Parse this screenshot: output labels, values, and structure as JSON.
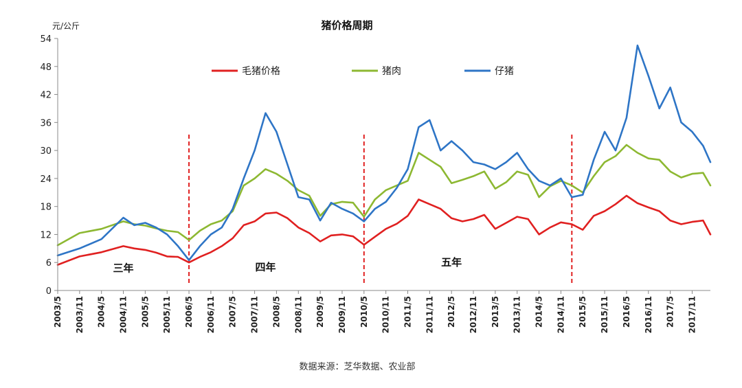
{
  "chart_data": {
    "type": "line",
    "title": "猪价格周期",
    "ylabel": "元/公斤",
    "ylim": [
      0,
      54
    ],
    "yticks": [
      0,
      6,
      12,
      18,
      24,
      30,
      36,
      42,
      48,
      54
    ],
    "x_start": "2003/5",
    "x_end": "2018/4",
    "xtick_labels": [
      "2003/5",
      "2003/11",
      "2004/5",
      "2004/11",
      "2005/5",
      "2005/11",
      "2006/5",
      "2006/11",
      "2007/5",
      "2007/11",
      "2008/5",
      "2008/11",
      "2009/5",
      "2009/11",
      "2010/5",
      "2010/11",
      "2011/5",
      "2011/11",
      "2012/5",
      "2012/11",
      "2013/5",
      "2013/11",
      "2014/5",
      "2014/11",
      "2015/5",
      "2015/11",
      "2016/5",
      "2016/11",
      "2017/5",
      "2017/11"
    ],
    "grid": false,
    "legend_position": "top",
    "series": [
      {
        "name": "毛猪价格",
        "color": "#e02020",
        "points": [
          [
            "2003/5",
            5.5
          ],
          [
            "2003/11",
            7.3
          ],
          [
            "2004/5",
            8.2
          ],
          [
            "2004/11",
            9.5
          ],
          [
            "2005/2",
            9.0
          ],
          [
            "2005/5",
            8.7
          ],
          [
            "2005/8",
            8.1
          ],
          [
            "2005/11",
            7.3
          ],
          [
            "2006/2",
            7.2
          ],
          [
            "2006/5",
            6.0
          ],
          [
            "2006/8",
            7.2
          ],
          [
            "2006/11",
            8.2
          ],
          [
            "2007/2",
            9.5
          ],
          [
            "2007/5",
            11.2
          ],
          [
            "2007/8",
            14.0
          ],
          [
            "2007/11",
            14.8
          ],
          [
            "2008/2",
            16.5
          ],
          [
            "2008/5",
            16.7
          ],
          [
            "2008/8",
            15.5
          ],
          [
            "2008/11",
            13.5
          ],
          [
            "2009/2",
            12.3
          ],
          [
            "2009/5",
            10.5
          ],
          [
            "2009/8",
            11.8
          ],
          [
            "2009/11",
            12.0
          ],
          [
            "2010/2",
            11.6
          ],
          [
            "2010/5",
            9.8
          ],
          [
            "2010/8",
            11.5
          ],
          [
            "2010/11",
            13.2
          ],
          [
            "2011/2",
            14.3
          ],
          [
            "2011/5",
            16.0
          ],
          [
            "2011/8",
            19.5
          ],
          [
            "2011/11",
            18.5
          ],
          [
            "2012/2",
            17.5
          ],
          [
            "2012/5",
            15.5
          ],
          [
            "2012/8",
            14.8
          ],
          [
            "2012/11",
            15.3
          ],
          [
            "2013/2",
            16.2
          ],
          [
            "2013/5",
            13.2
          ],
          [
            "2013/8",
            14.5
          ],
          [
            "2013/11",
            15.8
          ],
          [
            "2014/2",
            15.3
          ],
          [
            "2014/5",
            12.0
          ],
          [
            "2014/8",
            13.5
          ],
          [
            "2014/11",
            14.6
          ],
          [
            "2015/2",
            14.2
          ],
          [
            "2015/5",
            13.0
          ],
          [
            "2015/8",
            16.0
          ],
          [
            "2015/11",
            17.0
          ],
          [
            "2016/2",
            18.5
          ],
          [
            "2016/5",
            20.3
          ],
          [
            "2016/8",
            18.7
          ],
          [
            "2016/11",
            17.8
          ],
          [
            "2017/2",
            17.0
          ],
          [
            "2017/5",
            15.0
          ],
          [
            "2017/8",
            14.2
          ],
          [
            "2017/11",
            14.7
          ],
          [
            "2018/2",
            15.0
          ],
          [
            "2018/4",
            12.0
          ]
        ]
      },
      {
        "name": "猪肉",
        "color": "#8db832",
        "points": [
          [
            "2003/5",
            9.7
          ],
          [
            "2003/11",
            12.3
          ],
          [
            "2004/5",
            13.2
          ],
          [
            "2004/11",
            14.8
          ],
          [
            "2005/2",
            14.2
          ],
          [
            "2005/5",
            13.9
          ],
          [
            "2005/8",
            13.3
          ],
          [
            "2005/11",
            12.8
          ],
          [
            "2006/2",
            12.5
          ],
          [
            "2006/5",
            10.8
          ],
          [
            "2006/8",
            12.8
          ],
          [
            "2006/11",
            14.2
          ],
          [
            "2007/2",
            15.0
          ],
          [
            "2007/5",
            17.0
          ],
          [
            "2007/8",
            22.5
          ],
          [
            "2007/11",
            24.0
          ],
          [
            "2008/2",
            26.0
          ],
          [
            "2008/5",
            25.0
          ],
          [
            "2008/8",
            23.5
          ],
          [
            "2008/11",
            21.5
          ],
          [
            "2009/2",
            20.3
          ],
          [
            "2009/5",
            16.0
          ],
          [
            "2009/8",
            18.5
          ],
          [
            "2009/11",
            19.0
          ],
          [
            "2010/2",
            18.8
          ],
          [
            "2010/5",
            15.8
          ],
          [
            "2010/8",
            19.5
          ],
          [
            "2010/11",
            21.5
          ],
          [
            "2011/2",
            22.5
          ],
          [
            "2011/5",
            23.5
          ],
          [
            "2011/8",
            29.5
          ],
          [
            "2011/11",
            28.0
          ],
          [
            "2012/2",
            26.5
          ],
          [
            "2012/5",
            23.0
          ],
          [
            "2012/8",
            23.7
          ],
          [
            "2012/11",
            24.5
          ],
          [
            "2013/2",
            25.5
          ],
          [
            "2013/5",
            21.8
          ],
          [
            "2013/8",
            23.2
          ],
          [
            "2013/11",
            25.5
          ],
          [
            "2014/2",
            24.8
          ],
          [
            "2014/5",
            20.0
          ],
          [
            "2014/8",
            22.3
          ],
          [
            "2014/11",
            23.5
          ],
          [
            "2015/2",
            22.5
          ],
          [
            "2015/5",
            21.0
          ],
          [
            "2015/8",
            24.5
          ],
          [
            "2015/11",
            27.5
          ],
          [
            "2016/2",
            28.8
          ],
          [
            "2016/5",
            31.2
          ],
          [
            "2016/8",
            29.5
          ],
          [
            "2016/11",
            28.3
          ],
          [
            "2017/2",
            28.0
          ],
          [
            "2017/5",
            25.5
          ],
          [
            "2017/8",
            24.2
          ],
          [
            "2017/11",
            25.0
          ],
          [
            "2018/2",
            25.2
          ],
          [
            "2018/4",
            22.5
          ]
        ]
      },
      {
        "name": "仔猪",
        "color": "#2e75c6",
        "points": [
          [
            "2003/5",
            7.5
          ],
          [
            "2003/11",
            9.0
          ],
          [
            "2004/5",
            11.0
          ],
          [
            "2004/11",
            15.6
          ],
          [
            "2005/2",
            14.0
          ],
          [
            "2005/5",
            14.5
          ],
          [
            "2005/8",
            13.5
          ],
          [
            "2005/11",
            12.0
          ],
          [
            "2006/2",
            9.5
          ],
          [
            "2006/5",
            6.5
          ],
          [
            "2006/8",
            9.5
          ],
          [
            "2006/11",
            12.0
          ],
          [
            "2007/2",
            13.5
          ],
          [
            "2007/5",
            17.5
          ],
          [
            "2007/8",
            24.0
          ],
          [
            "2007/11",
            30.0
          ],
          [
            "2008/2",
            38.0
          ],
          [
            "2008/5",
            34.0
          ],
          [
            "2008/8",
            27.0
          ],
          [
            "2008/11",
            20.0
          ],
          [
            "2009/2",
            19.5
          ],
          [
            "2009/5",
            15.0
          ],
          [
            "2009/8",
            18.8
          ],
          [
            "2009/11",
            17.5
          ],
          [
            "2010/2",
            16.5
          ],
          [
            "2010/5",
            14.8
          ],
          [
            "2010/8",
            17.5
          ],
          [
            "2010/11",
            19.0
          ],
          [
            "2011/2",
            22.0
          ],
          [
            "2011/5",
            26.0
          ],
          [
            "2011/8",
            35.0
          ],
          [
            "2011/11",
            36.5
          ],
          [
            "2012/2",
            30.0
          ],
          [
            "2012/5",
            32.0
          ],
          [
            "2012/8",
            30.0
          ],
          [
            "2012/11",
            27.5
          ],
          [
            "2013/2",
            27.0
          ],
          [
            "2013/5",
            26.0
          ],
          [
            "2013/8",
            27.5
          ],
          [
            "2013/11",
            29.5
          ],
          [
            "2014/2",
            26.0
          ],
          [
            "2014/5",
            23.5
          ],
          [
            "2014/8",
            22.5
          ],
          [
            "2014/11",
            24.0
          ],
          [
            "2015/2",
            20.0
          ],
          [
            "2015/5",
            20.5
          ],
          [
            "2015/8",
            28.0
          ],
          [
            "2015/11",
            34.0
          ],
          [
            "2016/2",
            30.0
          ],
          [
            "2016/5",
            37.0
          ],
          [
            "2016/8",
            52.5
          ],
          [
            "2016/11",
            46.0
          ],
          [
            "2017/2",
            39.0
          ],
          [
            "2017/5",
            43.5
          ],
          [
            "2017/8",
            36.0
          ],
          [
            "2017/11",
            34.0
          ],
          [
            "2018/2",
            31.0
          ],
          [
            "2018/4",
            27.5
          ]
        ]
      }
    ],
    "cycle_dividers": [
      "2006/5",
      "2010/5",
      "2015/2"
    ],
    "cycle_labels": [
      {
        "text": "三年",
        "at": "2004/11",
        "y": 4.8
      },
      {
        "text": "四年",
        "at": "2008/2",
        "y": 5.0
      },
      {
        "text": "五年",
        "at": "2012/5",
        "y": 6.0
      }
    ],
    "source": "数据来源：芝华数据、农业部"
  }
}
